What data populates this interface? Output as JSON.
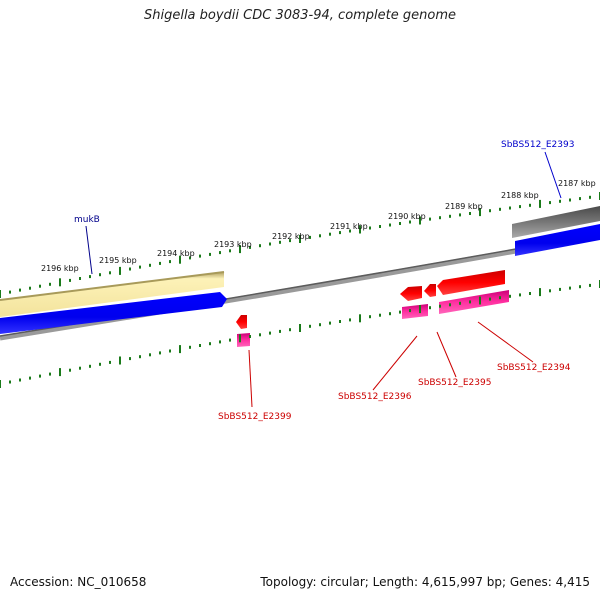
{
  "title": "Shigella boydii CDC 3083-94, complete genome",
  "footer": {
    "accession": "Accession: NC_010658",
    "summary": "Topology: circular; Length: 4,615,997 bp; Genes: 4,415"
  },
  "scale": {
    "unit": "kbp",
    "ticks": [
      {
        "label": "2196 kbp",
        "kbp": 2196
      },
      {
        "label": "2195 kbp",
        "kbp": 2195
      },
      {
        "label": "2194 kbp",
        "kbp": 2194
      },
      {
        "label": "2193 kbp",
        "kbp": 2193
      },
      {
        "label": "2192 kbp",
        "kbp": 2192
      },
      {
        "label": "2191 kbp",
        "kbp": 2191
      },
      {
        "label": "2190 kbp",
        "kbp": 2190
      },
      {
        "label": "2189 kbp",
        "kbp": 2189
      },
      {
        "label": "2188 kbp",
        "kbp": 2188
      },
      {
        "label": "2187 kbp",
        "kbp": 2187
      }
    ]
  },
  "genes": [
    {
      "label": "mukB",
      "color": "#00008b"
    },
    {
      "label": "SbBS512_E2393",
      "color": "#0000cc"
    },
    {
      "label": "SbBS512_E2399",
      "color": "#cc0000"
    },
    {
      "label": "SbBS512_E2396",
      "color": "#cc0000"
    },
    {
      "label": "SbBS512_E2395",
      "color": "#cc0000"
    },
    {
      "label": "SbBS512_E2394",
      "color": "#cc0000"
    }
  ],
  "colors": {
    "forward_cds": "#0000ff",
    "reverse_cds": "#ff0000",
    "forward_rna_band": "#f5e6a0",
    "reverse_rna_band": "#ff33aa",
    "backbone": "#808080",
    "ticks": "#1a7a1a",
    "grey_band": "#666666"
  }
}
